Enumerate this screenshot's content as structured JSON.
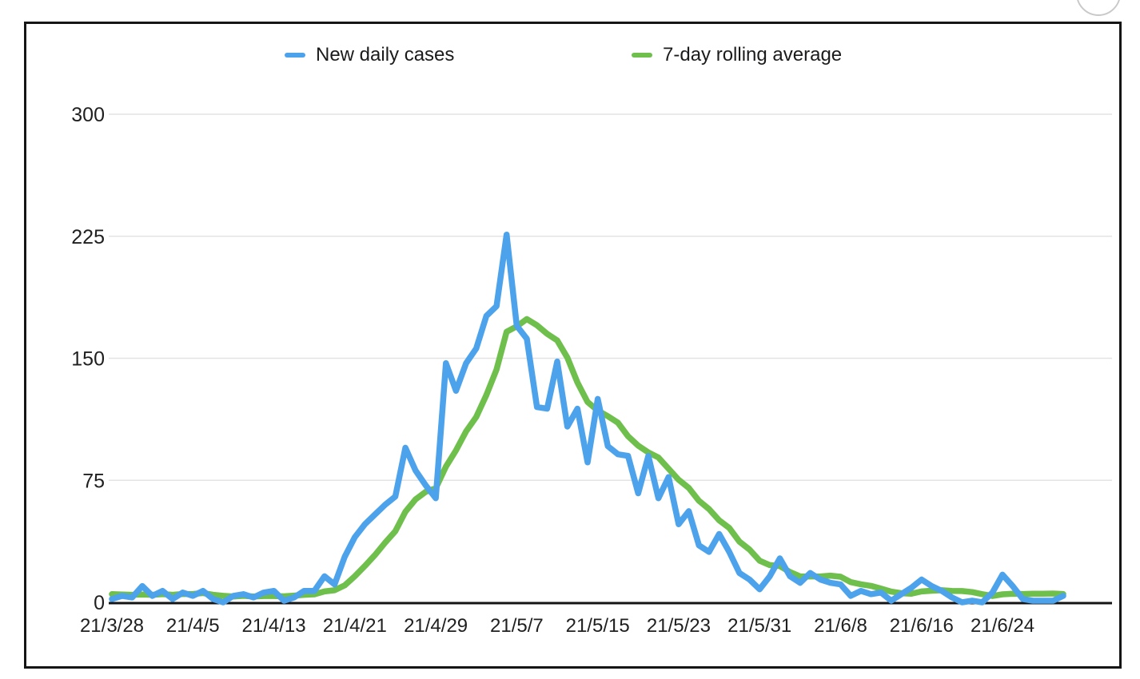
{
  "page": {
    "background": "#ffffff",
    "frame_border_color": "#151515"
  },
  "chart_data": {
    "type": "line",
    "title": "",
    "xlabel": "",
    "ylabel": "",
    "ylim": [
      0,
      300
    ],
    "yticks": [
      0,
      75,
      150,
      225,
      300
    ],
    "grid": "horizontal",
    "legend_position": "top",
    "gridline_color": "#e3e3e3",
    "axis_color": "#141414",
    "label_color": "#1f1f1f",
    "tick_every": 8,
    "tick_labels": [
      "21/3/28",
      "21/4/5",
      "21/4/13",
      "21/4/21",
      "21/4/29",
      "21/5/7",
      "21/5/15",
      "21/5/23",
      "21/5/31",
      "21/6/8",
      "21/6/16",
      "21/6/24"
    ],
    "dates": [
      "21/3/28",
      "21/3/29",
      "21/3/30",
      "21/3/31",
      "21/4/1",
      "21/4/2",
      "21/4/3",
      "21/4/4",
      "21/4/5",
      "21/4/6",
      "21/4/7",
      "21/4/8",
      "21/4/9",
      "21/4/10",
      "21/4/11",
      "21/4/12",
      "21/4/13",
      "21/4/14",
      "21/4/15",
      "21/4/16",
      "21/4/17",
      "21/4/18",
      "21/4/19",
      "21/4/20",
      "21/4/21",
      "21/4/22",
      "21/4/23",
      "21/4/24",
      "21/4/25",
      "21/4/26",
      "21/4/27",
      "21/4/28",
      "21/4/29",
      "21/4/30",
      "21/5/1",
      "21/5/2",
      "21/5/3",
      "21/5/4",
      "21/5/5",
      "21/5/6",
      "21/5/7",
      "21/5/8",
      "21/5/9",
      "21/5/10",
      "21/5/11",
      "21/5/12",
      "21/5/13",
      "21/5/14",
      "21/5/15",
      "21/5/16",
      "21/5/17",
      "21/5/18",
      "21/5/19",
      "21/5/20",
      "21/5/21",
      "21/5/22",
      "21/5/23",
      "21/5/24",
      "21/5/25",
      "21/5/26",
      "21/5/27",
      "21/5/28",
      "21/5/29",
      "21/5/30",
      "21/5/31",
      "21/6/1",
      "21/6/2",
      "21/6/3",
      "21/6/4",
      "21/6/5",
      "21/6/6",
      "21/6/7",
      "21/6/8",
      "21/6/9",
      "21/6/10",
      "21/6/11",
      "21/6/12",
      "21/6/13",
      "21/6/14",
      "21/6/15",
      "21/6/16",
      "21/6/17",
      "21/6/18",
      "21/6/19",
      "21/6/20",
      "21/6/21",
      "21/6/22",
      "21/6/23",
      "21/6/24",
      "21/6/25",
      "21/6/26",
      "21/6/27",
      "21/6/28",
      "21/6/29",
      "21/6/30"
    ],
    "series": [
      {
        "name": "New daily cases",
        "color": "#4da2ec",
        "values": [
          2,
          4,
          3,
          10,
          4,
          7,
          2,
          6,
          4,
          7,
          2,
          0,
          4,
          5,
          3,
          6,
          7,
          1,
          3,
          7,
          7,
          16,
          11,
          28,
          40,
          48,
          54,
          60,
          65,
          95,
          81,
          72,
          64,
          147,
          130,
          147,
          156,
          176,
          182,
          226,
          170,
          162,
          120,
          119,
          148,
          108,
          119,
          86,
          125,
          96,
          91,
          90,
          67,
          90,
          64,
          77,
          48,
          56,
          35,
          31,
          42,
          31,
          18,
          14,
          8,
          16,
          27,
          16,
          12,
          18,
          14,
          12,
          11,
          4,
          7,
          5,
          6,
          1,
          5,
          9,
          14,
          10,
          7,
          3,
          0,
          1,
          0,
          6,
          17,
          10,
          2,
          1,
          1,
          1,
          4
        ]
      },
      {
        "name": "7-day rolling average",
        "color": "#6fbf4c",
        "values": [
          5,
          4.8,
          4.6,
          4.8,
          4.6,
          5,
          4.6,
          5.1,
          5.1,
          5.7,
          4.6,
          4,
          3.6,
          4,
          3.6,
          3.9,
          3.9,
          3.7,
          4.1,
          4.6,
          4.9,
          6.7,
          7.4,
          10.4,
          16,
          22.4,
          29.1,
          36.7,
          43.7,
          55.7,
          63.3,
          67.9,
          70.1,
          83.4,
          93.4,
          105.1,
          113.9,
          127.4,
          143.1,
          166.3,
          169.6,
          174.1,
          170.3,
          165,
          161,
          150.4,
          135.1,
          123.1,
          117.9,
          114.4,
          110.4,
          102.1,
          96.3,
          92.1,
          89,
          82.1,
          75.3,
          70.3,
          62.4,
          57.3,
          50.4,
          45.7,
          37.3,
          32.4,
          25.6,
          22.9,
          22.3,
          18.6,
          15.9,
          15.9,
          15.9,
          16.4,
          15.7,
          12.4,
          11.1,
          10.1,
          8.4,
          6.6,
          5.6,
          5.3,
          6.7,
          7.1,
          7.4,
          7,
          6.9,
          6.3,
          5,
          3.9,
          4.9,
          5.3,
          5.1,
          5.3,
          5.3,
          5.4,
          5.1
        ]
      }
    ]
  }
}
